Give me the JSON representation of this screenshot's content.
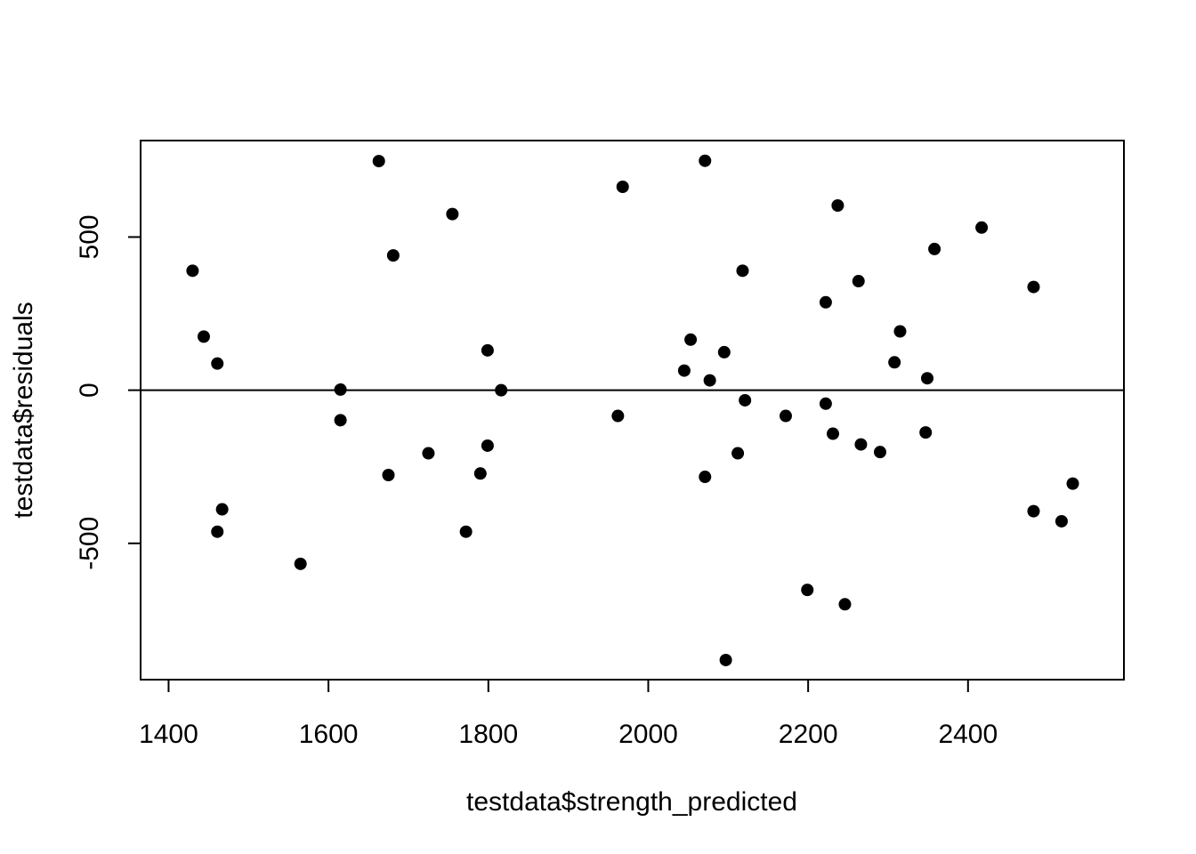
{
  "chart_data": {
    "type": "scatter",
    "title": "",
    "xlabel": "testdata$strength_predicted",
    "ylabel": "testdata$residuals",
    "xlim": [
      1365,
      2595
    ],
    "ylim": [
      -945,
      815
    ],
    "x_ticks": [
      1400,
      1600,
      1800,
      2000,
      2200,
      2400
    ],
    "y_ticks": [
      -500,
      0,
      500
    ],
    "reference_line_y": 0,
    "grid": false,
    "legend": "none",
    "marker_color": "#000000",
    "points": [
      {
        "x": 1430,
        "y": 390
      },
      {
        "x": 1444,
        "y": 175
      },
      {
        "x": 1461,
        "y": 87
      },
      {
        "x": 1461,
        "y": -462
      },
      {
        "x": 1467,
        "y": -389
      },
      {
        "x": 1565,
        "y": -567
      },
      {
        "x": 1615,
        "y": 2
      },
      {
        "x": 1615,
        "y": -98
      },
      {
        "x": 1663,
        "y": 748
      },
      {
        "x": 1675,
        "y": -277
      },
      {
        "x": 1681,
        "y": 440
      },
      {
        "x": 1725,
        "y": -206
      },
      {
        "x": 1755,
        "y": 575
      },
      {
        "x": 1772,
        "y": -462
      },
      {
        "x": 1790,
        "y": -272
      },
      {
        "x": 1799,
        "y": 130
      },
      {
        "x": 1799,
        "y": -181
      },
      {
        "x": 1816,
        "y": 0
      },
      {
        "x": 1962,
        "y": -84
      },
      {
        "x": 1968,
        "y": 664
      },
      {
        "x": 2045,
        "y": 64
      },
      {
        "x": 2053,
        "y": 165
      },
      {
        "x": 2071,
        "y": 749
      },
      {
        "x": 2071,
        "y": -283
      },
      {
        "x": 2077,
        "y": 32
      },
      {
        "x": 2095,
        "y": 124
      },
      {
        "x": 2097,
        "y": -881
      },
      {
        "x": 2112,
        "y": -206
      },
      {
        "x": 2118,
        "y": 390
      },
      {
        "x": 2121,
        "y": -33
      },
      {
        "x": 2172,
        "y": -84
      },
      {
        "x": 2199,
        "y": -652
      },
      {
        "x": 2222,
        "y": 287
      },
      {
        "x": 2222,
        "y": -44
      },
      {
        "x": 2231,
        "y": -142
      },
      {
        "x": 2237,
        "y": 603
      },
      {
        "x": 2246,
        "y": -699
      },
      {
        "x": 2263,
        "y": 356
      },
      {
        "x": 2266,
        "y": -177
      },
      {
        "x": 2290,
        "y": -202
      },
      {
        "x": 2308,
        "y": 91
      },
      {
        "x": 2315,
        "y": 192
      },
      {
        "x": 2347,
        "y": -138
      },
      {
        "x": 2349,
        "y": 39
      },
      {
        "x": 2358,
        "y": 461
      },
      {
        "x": 2417,
        "y": 531
      },
      {
        "x": 2482,
        "y": 337
      },
      {
        "x": 2482,
        "y": -395
      },
      {
        "x": 2517,
        "y": -428
      },
      {
        "x": 2531,
        "y": -305
      }
    ]
  }
}
